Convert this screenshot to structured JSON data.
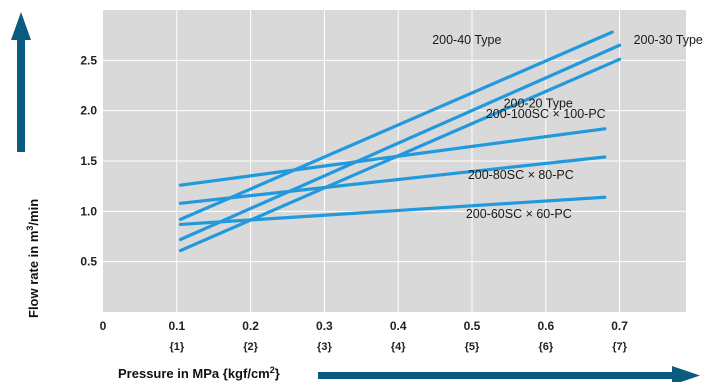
{
  "chart_data": {
    "type": "line",
    "x_unit_note": "kgf/cm2 equivalents shown in braces under MPa ticks",
    "xlabel": "Pressure in MPa {kgf/cm",
    "xlabel_sup": "2",
    "xlabel_end": "}",
    "ylabel": "Flow rate in m",
    "ylabel_sup": "3",
    "ylabel_end": "/min",
    "xlim": [
      0,
      0.79
    ],
    "ylim": [
      0,
      3.0
    ],
    "x_ticks": [
      "0",
      "0.1",
      "0.2",
      "0.3",
      "0.4",
      "0.5",
      "0.6",
      "0.7"
    ],
    "x_ticks_sub": [
      "",
      "{1}",
      "{2}",
      "{3}",
      "{4}",
      "{5}",
      "{6}",
      "{7}"
    ],
    "y_ticks": [
      "0.5",
      "1.0",
      "1.5",
      "2.0",
      "2.5"
    ],
    "grid": true,
    "colors": {
      "plot_background": "#d9d9d9",
      "grid": "#ffffff",
      "series": "#2299dd",
      "arrow": "#0b5a80"
    },
    "series": [
      {
        "name": "200-40 Type",
        "x": [
          0.105,
          0.69
        ],
        "y": [
          0.92,
          2.78
        ]
      },
      {
        "name": "200-30 Type",
        "x": [
          0.105,
          0.7
        ],
        "y": [
          0.72,
          2.65
        ]
      },
      {
        "name": "200-20 Type",
        "x": [
          0.105,
          0.7
        ],
        "y": [
          0.61,
          2.51
        ]
      },
      {
        "name": "200-100SC × 100-PC",
        "x": [
          0.105,
          0.68
        ],
        "y": [
          1.26,
          1.82
        ]
      },
      {
        "name": "200-80SC × 80-PC",
        "x": [
          0.105,
          0.68
        ],
        "y": [
          1.08,
          1.54
        ]
      },
      {
        "name": "200-60SC × 60-PC",
        "x": [
          0.105,
          0.68
        ],
        "y": [
          0.87,
          1.14
        ]
      }
    ]
  }
}
